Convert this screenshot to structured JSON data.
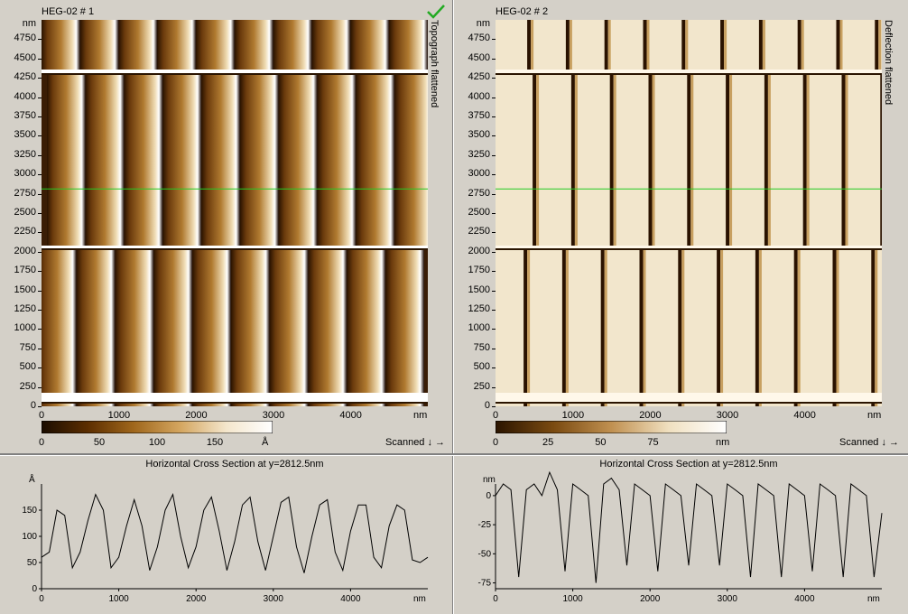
{
  "left": {
    "title": "HEG-02 # 1",
    "side_label": "Topograph flattened",
    "check_icon": "green-checkmark-icon",
    "y_axis": [
      "4750",
      "4500",
      "4250",
      "4000",
      "3750",
      "3500",
      "3250",
      "3000",
      "2750",
      "2500",
      "2250",
      "2000",
      "1750",
      "1500",
      "1250",
      "1000",
      "750",
      "500",
      "250",
      "0"
    ],
    "y_unit": "nm",
    "x_axis": [
      "0",
      "1000",
      "2000",
      "3000",
      "4000"
    ],
    "x_unit": "nm",
    "colorbar_ticks": [
      "0",
      "50",
      "100",
      "150"
    ],
    "colorbar_unit": "Å",
    "colors": [
      "#1a0c00",
      "#5c2e00",
      "#a0671c",
      "#d4a660",
      "#f4e6cc",
      "#ffffff"
    ],
    "scanned_label": "Scanned ↓ →",
    "cross_section": {
      "title": "Horizontal Cross Section at y=2812.5nm",
      "y_unit": "Å",
      "y_ticks": [
        "150",
        "100",
        "50",
        "0"
      ],
      "x_ticks": [
        "0",
        "1000",
        "2000",
        "3000",
        "4000"
      ],
      "x_unit": "nm"
    }
  },
  "right": {
    "title": "HEG-02 # 2",
    "side_label": "Deflection flattened",
    "y_axis": [
      "4750",
      "4500",
      "4250",
      "4000",
      "3750",
      "3500",
      "3250",
      "3000",
      "2750",
      "2500",
      "2250",
      "2000",
      "1750",
      "1500",
      "1250",
      "1000",
      "750",
      "500",
      "250",
      "0"
    ],
    "y_unit": "nm",
    "x_axis": [
      "0",
      "1000",
      "2000",
      "3000",
      "4000"
    ],
    "x_unit": "nm",
    "colorbar_ticks": [
      "0",
      "25",
      "50",
      "75"
    ],
    "colorbar_unit": "nm",
    "colors": [
      "#2a1400",
      "#7a4a10",
      "#c09050",
      "#f0e0c0",
      "#ffffff"
    ],
    "scanned_label": "Scanned ↓ →",
    "cross_section": {
      "title": "Horizontal Cross Section at y=2812.5nm",
      "y_unit": "nm",
      "y_ticks": [
        "0",
        "-25",
        "-50",
        "-75"
      ],
      "x_ticks": [
        "0",
        "1000",
        "2000",
        "3000",
        "4000"
      ],
      "x_unit": "nm"
    }
  },
  "cursor_line_color": "#22cc22",
  "chart_data": [
    {
      "type": "line",
      "title": "Horizontal Cross Section at y=2812.5nm",
      "xlabel": "nm",
      "ylabel": "Å",
      "xlim": [
        0,
        5000
      ],
      "ylim": [
        0,
        200
      ],
      "x": [
        0,
        100,
        200,
        300,
        400,
        500,
        600,
        700,
        800,
        900,
        1000,
        1100,
        1200,
        1300,
        1400,
        1500,
        1600,
        1700,
        1800,
        1900,
        2000,
        2100,
        2200,
        2300,
        2400,
        2500,
        2600,
        2700,
        2800,
        2900,
        3000,
        3100,
        3200,
        3300,
        3400,
        3500,
        3600,
        3700,
        3800,
        3900,
        4000,
        4100,
        4200,
        4300,
        4400,
        4500,
        4600,
        4700,
        4800,
        4900,
        5000
      ],
      "y": [
        60,
        70,
        150,
        140,
        40,
        70,
        130,
        180,
        150,
        40,
        60,
        120,
        170,
        120,
        35,
        80,
        150,
        180,
        100,
        40,
        80,
        150,
        175,
        110,
        35,
        90,
        160,
        175,
        90,
        35,
        100,
        165,
        175,
        80,
        30,
        100,
        160,
        170,
        70,
        35,
        110,
        160,
        160,
        60,
        40,
        120,
        160,
        150,
        55,
        50,
        60
      ]
    },
    {
      "type": "line",
      "title": "Horizontal Cross Section at y=2812.5nm",
      "xlabel": "nm",
      "ylabel": "nm",
      "xlim": [
        0,
        5000
      ],
      "ylim": [
        -80,
        10
      ],
      "x": [
        0,
        100,
        200,
        300,
        400,
        500,
        600,
        700,
        800,
        900,
        1000,
        1100,
        1200,
        1300,
        1400,
        1500,
        1600,
        1700,
        1800,
        1900,
        2000,
        2100,
        2200,
        2300,
        2400,
        2500,
        2600,
        2700,
        2800,
        2900,
        3000,
        3100,
        3200,
        3300,
        3400,
        3500,
        3600,
        3700,
        3800,
        3900,
        4000,
        4100,
        4200,
        4300,
        4400,
        4500,
        4600,
        4700,
        4800,
        4900,
        5000
      ],
      "y": [
        0,
        10,
        5,
        -70,
        5,
        10,
        0,
        20,
        5,
        -65,
        10,
        5,
        0,
        -75,
        10,
        15,
        5,
        -60,
        10,
        5,
        0,
        -65,
        10,
        5,
        0,
        -60,
        10,
        5,
        0,
        -60,
        10,
        5,
        0,
        -70,
        10,
        5,
        0,
        -70,
        10,
        5,
        0,
        -65,
        10,
        5,
        0,
        -70,
        10,
        5,
        0,
        -70,
        -15
      ]
    }
  ]
}
